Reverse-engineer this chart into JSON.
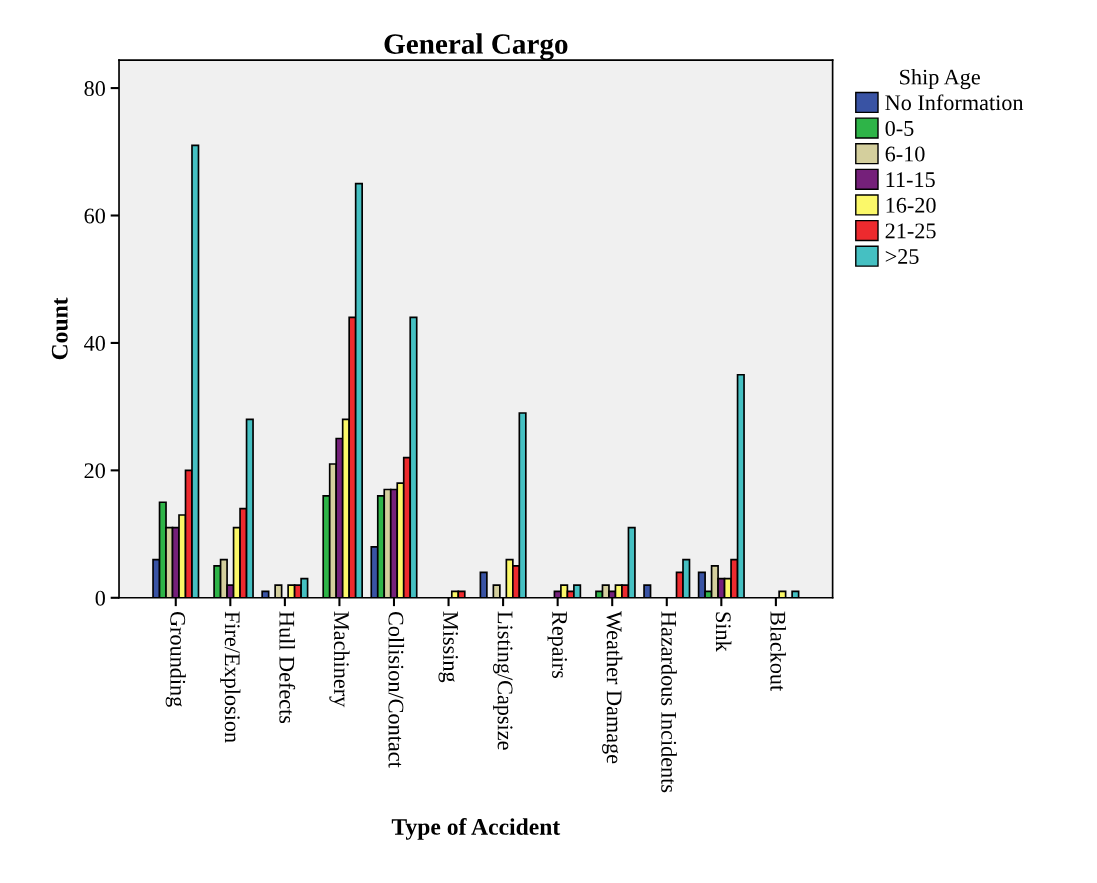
{
  "chart_data": {
    "type": "bar",
    "title": "General Cargo",
    "xlabel": "Type of Accident",
    "ylabel": "Count",
    "legend_title": "Ship Age",
    "categories": [
      "Grounding",
      "Fire/Explosion",
      "Hull Defects",
      "Machinery",
      "Collision/Contact",
      "Missing",
      "Listing/Capsize",
      "Repairs",
      "Weather Damage",
      "Hazardous Incidents",
      "Sink",
      "Blackout"
    ],
    "series": [
      {
        "name": "No Information",
        "color": "#3953a4",
        "values": [
          6,
          0,
          1,
          0,
          8,
          0,
          4,
          0,
          0,
          2,
          4,
          0
        ]
      },
      {
        "name": "0-5",
        "color": "#2eb448",
        "values": [
          15,
          5,
          0,
          16,
          16,
          0,
          0,
          0,
          1,
          0,
          1,
          0
        ]
      },
      {
        "name": "6-10",
        "color": "#d4cf9d",
        "values": [
          11,
          6,
          2,
          21,
          17,
          0,
          2,
          0,
          2,
          0,
          5,
          0
        ]
      },
      {
        "name": "11-15",
        "color": "#75207a",
        "values": [
          11,
          2,
          0,
          25,
          17,
          0,
          0,
          1,
          1,
          0,
          3,
          0
        ]
      },
      {
        "name": "16-20",
        "color": "#fbf869",
        "values": [
          13,
          11,
          2,
          28,
          18,
          1,
          6,
          2,
          2,
          0,
          3,
          1
        ]
      },
      {
        "name": "21-25",
        "color": "#ed2a2e",
        "values": [
          20,
          14,
          2,
          44,
          22,
          1,
          5,
          1,
          2,
          4,
          6,
          0
        ]
      },
      {
        "name": ">25",
        "color": "#45c0c2",
        "values": [
          71,
          28,
          3,
          65,
          44,
          0,
          29,
          2,
          11,
          6,
          35,
          1
        ]
      }
    ],
    "ylim": [
      0,
      84.4
    ],
    "yticks": [
      0,
      20,
      40,
      60,
      80
    ],
    "grid": false,
    "legend": "right"
  }
}
